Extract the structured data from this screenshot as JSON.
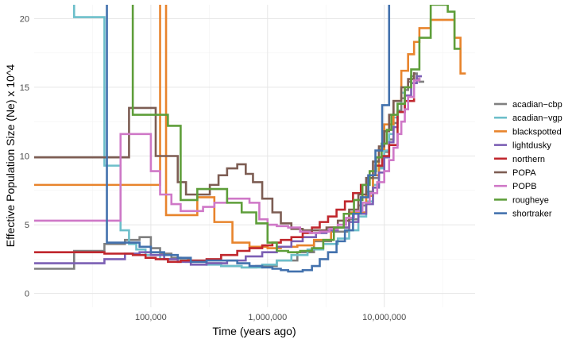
{
  "chart_data": {
    "type": "line",
    "step": true,
    "xlabel": "Time (years ago)",
    "ylabel": "Effective Population Size (Ne) x 10^4",
    "x_scale": "log",
    "xlim": [
      10000,
      60000000
    ],
    "ylim": [
      -1,
      21
    ],
    "x_ticks": [
      {
        "value": 100000,
        "label": "100,000"
      },
      {
        "value": 1000000,
        "label": "1,000,000"
      },
      {
        "value": 10000000,
        "label": "10,000,000"
      }
    ],
    "y_ticks": [
      {
        "value": 0,
        "label": "0"
      },
      {
        "value": 5,
        "label": "5"
      },
      {
        "value": 10,
        "label": "10"
      },
      {
        "value": 15,
        "label": "15"
      },
      {
        "value": 20,
        "label": "20"
      }
    ],
    "grid": true,
    "legend_position": "right",
    "series": [
      {
        "name": "acadian−cbp",
        "color": "#7f7f7f",
        "x": [
          10000,
          22000,
          40000,
          60000,
          80000,
          100000,
          120000,
          150000,
          180000,
          220000,
          300000,
          400000,
          600000,
          800000,
          1200000,
          1800000,
          2500000,
          3500000,
          5000000,
          6000000,
          7000000,
          8000000,
          9000000,
          10000000,
          11000000,
          12000000,
          13000000,
          14000000,
          15000000,
          16000000,
          17000000,
          18000000,
          19000000,
          20000000,
          22000000
        ],
        "y": [
          1.8,
          3.1,
          3.6,
          3.9,
          4.1,
          3.3,
          2.9,
          2.6,
          2.5,
          2.4,
          2.2,
          2.0,
          1.9,
          2.0,
          2.4,
          3.0,
          3.8,
          4.5,
          5.4,
          6.4,
          7.4,
          8.4,
          9.2,
          10.3,
          11.2,
          12.4,
          13.3,
          14.2,
          14.8,
          15.4,
          15.8,
          16.0,
          15.6,
          15.4,
          15.4
        ]
      },
      {
        "name": "acadian−vgp",
        "color": "#6dbfca",
        "x": [
          10000,
          22000,
          40000,
          55000,
          65000,
          75000,
          90000,
          120000,
          200000,
          300000,
          400000,
          600000,
          900000,
          1200000,
          1600000,
          2200000,
          3000000,
          4000000,
          5000000,
          6000000,
          7000000,
          8000000,
          9000000,
          10000000,
          11000000,
          12000000,
          13000000,
          14000000,
          15000000
        ],
        "y": [
          22,
          20.1,
          9.3,
          4.6,
          3.6,
          3.2,
          2.8,
          2.5,
          2.3,
          2.1,
          2.0,
          1.9,
          2.1,
          2.4,
          2.8,
          3.2,
          3.6,
          4.0,
          4.6,
          5.6,
          6.7,
          7.9,
          9.1,
          10.4,
          11.6,
          12.8,
          13.8,
          14.6,
          14.6
        ]
      },
      {
        "name": "blackspotted",
        "color": "#e8842c",
        "x": [
          10000,
          40000,
          55000,
          70000,
          90000,
          105000,
          120000,
          135000,
          150000,
          180000,
          250000,
          350000,
          500000,
          700000,
          1000000,
          1300000,
          1800000,
          2500000,
          3500000,
          5000000,
          7000000,
          8000000,
          9000000,
          10000000,
          12000000,
          14000000,
          16000000,
          18000000,
          20000000,
          25000000,
          30000000,
          40000000,
          45000000,
          50000000
        ],
        "y": [
          7.9,
          7.9,
          7.9,
          7.9,
          7.9,
          7.9,
          22,
          5.7,
          5.7,
          5.7,
          7.0,
          5.2,
          3.7,
          3.4,
          3.3,
          3.4,
          3.5,
          3.9,
          4.8,
          5.9,
          7.1,
          8.6,
          10.5,
          12.3,
          14.0,
          16.2,
          17.4,
          18.3,
          19.3,
          19.9,
          19.9,
          18.6,
          16.0,
          16.0
        ]
      },
      {
        "name": "lightdusky",
        "color": "#7b5fb4",
        "x": [
          10000,
          20000,
          40000,
          60000,
          80000,
          100000,
          130000,
          170000,
          220000,
          300000,
          450000,
          650000,
          900000,
          1200000,
          1600000,
          2000000,
          2600000,
          3200000,
          4000000,
          5000000,
          6000000,
          7000000,
          8000000,
          9000000,
          10000000,
          11000000,
          12000000,
          13000000,
          15000000,
          17000000,
          19000000,
          21000000
        ],
        "y": [
          2.2,
          2.2,
          2.5,
          2.9,
          3.0,
          2.8,
          2.5,
          2.3,
          2.1,
          2.2,
          2.4,
          2.7,
          3.0,
          3.4,
          3.8,
          4.1,
          4.4,
          4.6,
          4.8,
          5.2,
          5.8,
          6.5,
          7.7,
          8.8,
          9.9,
          11.0,
          12.1,
          13.2,
          14.4,
          15.3,
          15.8,
          15.8
        ]
      },
      {
        "name": "northern",
        "color": "#c0272d",
        "x": [
          10000,
          25000,
          40000,
          55000,
          70000,
          90000,
          110000,
          140000,
          180000,
          230000,
          300000,
          400000,
          550000,
          700000,
          900000,
          1100000,
          1300000,
          1600000,
          2000000,
          2400000,
          2800000,
          3300000,
          3900000,
          4600000,
          5400000,
          6300000,
          7300000,
          8400000,
          9600000,
          11000000,
          13000000,
          15000000,
          18000000
        ],
        "y": [
          3.0,
          3.0,
          2.9,
          2.9,
          2.8,
          2.6,
          2.5,
          2.3,
          2.4,
          2.4,
          2.5,
          2.8,
          3.1,
          3.3,
          3.5,
          3.7,
          3.9,
          4.1,
          4.4,
          4.8,
          5.2,
          5.6,
          6.1,
          6.7,
          7.3,
          7.9,
          8.6,
          9.3,
          10.0,
          10.8,
          13.2,
          14.0,
          14.2
        ]
      },
      {
        "name": "POPA",
        "color": "#7d5d53",
        "x": [
          10000,
          40000,
          55000,
          65000,
          90000,
          110000,
          140000,
          170000,
          200000,
          260000,
          320000,
          380000,
          450000,
          550000,
          650000,
          750000,
          900000,
          1100000,
          1300000,
          1600000,
          2000000,
          2500000,
          3200000,
          4000000,
          5000000,
          6000000,
          7000000,
          8000000,
          9000000,
          10000000,
          11000000,
          12000000,
          14000000,
          16000000,
          18000000
        ],
        "y": [
          9.9,
          9.9,
          9.9,
          13.5,
          13.5,
          10.0,
          10.0,
          8.1,
          7.2,
          7.2,
          7.9,
          8.6,
          9.1,
          9.4,
          8.7,
          8.1,
          6.9,
          5.9,
          5.1,
          4.7,
          4.6,
          4.6,
          4.8,
          5.3,
          6.1,
          7.2,
          8.4,
          9.6,
          10.7,
          11.8,
          13.0,
          14.0,
          15.0,
          15.6,
          16.1
        ]
      },
      {
        "name": "POPB",
        "color": "#cf78c7",
        "x": [
          10000,
          40000,
          55000,
          65000,
          70000,
          80000,
          100000,
          120000,
          150000,
          180000,
          220000,
          280000,
          350000,
          450000,
          550000,
          700000,
          850000,
          1000000,
          1200000,
          1500000,
          1900000,
          2300000,
          2800000,
          3400000,
          4000000,
          4700000,
          5500000,
          6500000,
          7500000,
          8700000,
          10000000,
          11000000,
          12000000,
          13000000,
          14000000,
          15000000,
          16000000,
          18000000,
          20000000
        ],
        "y": [
          5.3,
          5.3,
          11.6,
          11.6,
          11.6,
          11.6,
          8.9,
          7.2,
          6.5,
          6.0,
          6.0,
          6.3,
          6.6,
          6.9,
          6.9,
          6.6,
          5.4,
          5.0,
          4.9,
          4.8,
          4.5,
          4.4,
          4.5,
          4.7,
          5.0,
          5.5,
          6.0,
          6.6,
          7.3,
          8.1,
          8.9,
          9.7,
          10.6,
          11.6,
          12.5,
          13.4,
          14.3,
          15.5,
          15.7
        ]
      },
      {
        "name": "rougheye",
        "color": "#5e9e3a",
        "x": [
          10000,
          40000,
          55000,
          62000,
          70000,
          90000,
          110000,
          140000,
          180000,
          250000,
          350000,
          450000,
          600000,
          800000,
          1000000,
          1200000,
          1500000,
          1900000,
          2400000,
          3000000,
          3700000,
          4500000,
          5500000,
          6500000,
          7500000,
          8500000,
          9500000,
          10500000,
          11500000,
          13000000,
          15000000,
          17000000,
          20000000,
          25000000,
          30000000,
          35000000,
          40000000,
          45000000
        ],
        "y": [
          22,
          22,
          22,
          22,
          13.0,
          13.0,
          13.0,
          12.2,
          6.8,
          7.6,
          7.6,
          6.6,
          5.9,
          5.1,
          3.7,
          3.1,
          3.0,
          3.1,
          3.3,
          3.9,
          4.8,
          5.8,
          6.8,
          7.9,
          8.9,
          9.9,
          10.9,
          11.9,
          13.0,
          13.8,
          15.0,
          16.3,
          18.6,
          21.0,
          21.0,
          20.5,
          17.8,
          17.8
        ]
      },
      {
        "name": "shortraker",
        "color": "#4271ad",
        "x": [
          10000,
          40000,
          42000,
          50000,
          65000,
          80000,
          100000,
          130000,
          170000,
          220000,
          300000,
          400000,
          550000,
          700000,
          900000,
          1100000,
          1300000,
          1500000,
          1700000,
          2000000,
          2400000,
          2800000,
          3300000,
          3900000,
          4600000,
          5400000,
          6300000,
          7300000,
          8400000,
          9600000,
          11000000,
          12500000,
          13500000
        ],
        "y": [
          22,
          22,
          3.7,
          3.7,
          3.7,
          3.4,
          3.0,
          2.8,
          2.6,
          2.3,
          2.4,
          2.4,
          2.2,
          2.0,
          1.9,
          1.8,
          1.7,
          1.6,
          1.6,
          1.7,
          2.0,
          2.5,
          3.0,
          3.8,
          4.6,
          5.8,
          7.0,
          8.6,
          10.4,
          13.7,
          22,
          22,
          22
        ]
      }
    ]
  }
}
